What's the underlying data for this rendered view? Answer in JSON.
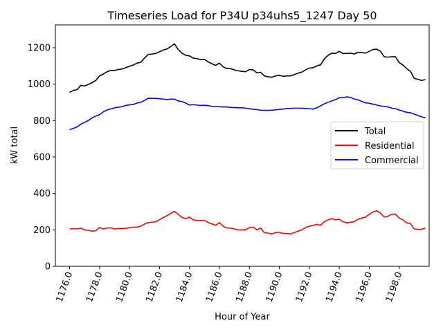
{
  "chart_data": {
    "type": "line",
    "title": "Timeseries Load for P34U p34uhs5_1247  Day 50",
    "xlabel": "Hour of Year",
    "ylabel": "kW total",
    "xlim": [
      1175.05,
      1200.0
    ],
    "ylim": [
      0,
      1325
    ],
    "x_ticks": [
      1176,
      1178,
      1180,
      1182,
      1184,
      1186,
      1188,
      1190,
      1192,
      1194,
      1196,
      1198
    ],
    "x_tick_labels": [
      "1176.0",
      "1178.0",
      "1180.0",
      "1182.0",
      "1184.0",
      "1186.0",
      "1188.0",
      "1190.0",
      "1192.0",
      "1194.0",
      "1196.0",
      "1198.0"
    ],
    "y_ticks": [
      0,
      200,
      400,
      600,
      800,
      1000,
      1200
    ],
    "y_tick_labels": [
      "0",
      "200",
      "400",
      "600",
      "800",
      "1000",
      "1200"
    ],
    "grid": false,
    "legend_position": "center-right",
    "x_start": 1176.0,
    "x_step": 0.25,
    "series": [
      {
        "name": "Total",
        "color": "#000000",
        "values": [
          955,
          965,
          970,
          993,
          990,
          998,
          1008,
          1020,
          1045,
          1055,
          1068,
          1075,
          1075,
          1080,
          1083,
          1090,
          1098,
          1105,
          1115,
          1120,
          1143,
          1163,
          1165,
          1168,
          1178,
          1187,
          1193,
          1206,
          1221,
          1190,
          1170,
          1158,
          1155,
          1143,
          1140,
          1135,
          1136,
          1122,
          1112,
          1103,
          1115,
          1095,
          1085,
          1085,
          1078,
          1073,
          1070,
          1068,
          1080,
          1078,
          1062,
          1065,
          1045,
          1040,
          1038,
          1045,
          1048,
          1043,
          1045,
          1045,
          1052,
          1060,
          1066,
          1078,
          1088,
          1090,
          1100,
          1106,
          1138,
          1158,
          1170,
          1168,
          1180,
          1168,
          1168,
          1170,
          1165,
          1175,
          1173,
          1170,
          1180,
          1190,
          1192,
          1180,
          1150,
          1148,
          1150,
          1150,
          1118,
          1105,
          1085,
          1070,
          1032,
          1026,
          1020,
          1025
        ]
      },
      {
        "name": "Residential",
        "color": "#ff0000",
        "values": [
          205,
          207,
          205,
          210,
          200,
          197,
          193,
          195,
          213,
          205,
          210,
          211,
          205,
          207,
          207,
          208,
          212,
          215,
          215,
          220,
          232,
          240,
          242,
          244,
          256,
          268,
          278,
          290,
          302,
          285,
          268,
          262,
          270,
          255,
          252,
          250,
          252,
          240,
          233,
          225,
          240,
          220,
          210,
          210,
          205,
          200,
          200,
          200,
          213,
          215,
          200,
          210,
          185,
          182,
          178,
          185,
          187,
          180,
          180,
          178,
          185,
          193,
          200,
          213,
          220,
          225,
          230,
          225,
          245,
          255,
          262,
          255,
          258,
          245,
          238,
          242,
          245,
          258,
          265,
          270,
          285,
          298,
          305,
          292,
          270,
          275,
          285,
          287,
          265,
          255,
          238,
          235,
          205,
          203,
          203,
          210
        ]
      },
      {
        "name": "Commercial",
        "color": "#0000ff",
        "values": [
          750,
          757,
          765,
          780,
          790,
          800,
          815,
          825,
          832,
          848,
          858,
          864,
          870,
          873,
          876,
          883,
          886,
          888,
          896,
          900,
          910,
          923,
          922,
          922,
          920,
          918,
          915,
          918,
          917,
          908,
          904,
          896,
          885,
          887,
          885,
          883,
          884,
          882,
          878,
          878,
          876,
          875,
          875,
          872,
          871,
          870,
          870,
          868,
          865,
          862,
          860,
          857,
          856,
          856,
          857,
          859,
          861,
          863,
          866,
          867,
          868,
          868,
          868,
          866,
          865,
          863,
          870,
          880,
          892,
          900,
          908,
          915,
          925,
          925,
          930,
          927,
          918,
          914,
          905,
          897,
          895,
          890,
          885,
          880,
          878,
          875,
          868,
          865,
          858,
          852,
          845,
          843,
          835,
          828,
          820,
          815
        ]
      }
    ]
  }
}
